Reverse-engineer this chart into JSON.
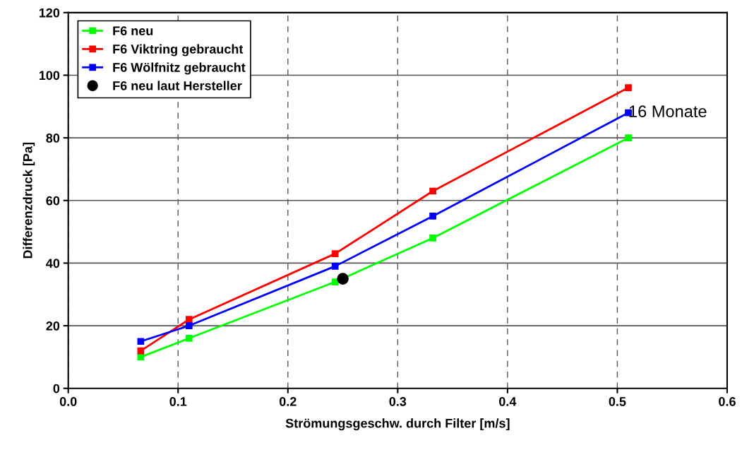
{
  "chart_data": {
    "type": "line",
    "xlabel": "Strömungsgeschw. durch Filter [m/s]",
    "ylabel": "Differenzdruck [Pa]",
    "xlim": [
      0,
      0.6
    ],
    "xticks": [
      {
        "value": 0,
        "label": "0.0"
      },
      0.1,
      0.2,
      0.3,
      0.4,
      0.5,
      0.6
    ],
    "ylim": [
      0,
      120
    ],
    "yticks": [
      0,
      20,
      40,
      60,
      80,
      100,
      120
    ],
    "grid": true,
    "legend": "top left",
    "marker": "square",
    "line_style": "solid",
    "series": [
      {
        "name": "F6 neu",
        "color": "#00ff00",
        "x": [
          0.066,
          0.11,
          0.243,
          0.332,
          0.51
        ],
        "values": [
          10,
          16,
          34,
          48,
          80
        ]
      },
      {
        "name": "F6 Viktring gebraucht",
        "color": "#ff0000",
        "x": [
          0.066,
          0.11,
          0.243,
          0.332,
          0.51
        ],
        "values": [
          12,
          22,
          43,
          63,
          96
        ]
      },
      {
        "name": "F6 Wölfnitz gebraucht",
        "color": "#0000ff",
        "x": [
          0.066,
          0.11,
          0.243,
          0.332,
          0.51
        ],
        "values": [
          15,
          20,
          39,
          55,
          88
        ]
      },
      {
        "name": "F6 neu laut Hersteller",
        "color": "#000000",
        "type": "scatter",
        "marker": "circle",
        "x": [
          0.25
        ],
        "values": [
          35
        ]
      }
    ],
    "annotations": [
      {
        "text": "16 Monate",
        "x": 0.51,
        "y": 88
      }
    ]
  }
}
